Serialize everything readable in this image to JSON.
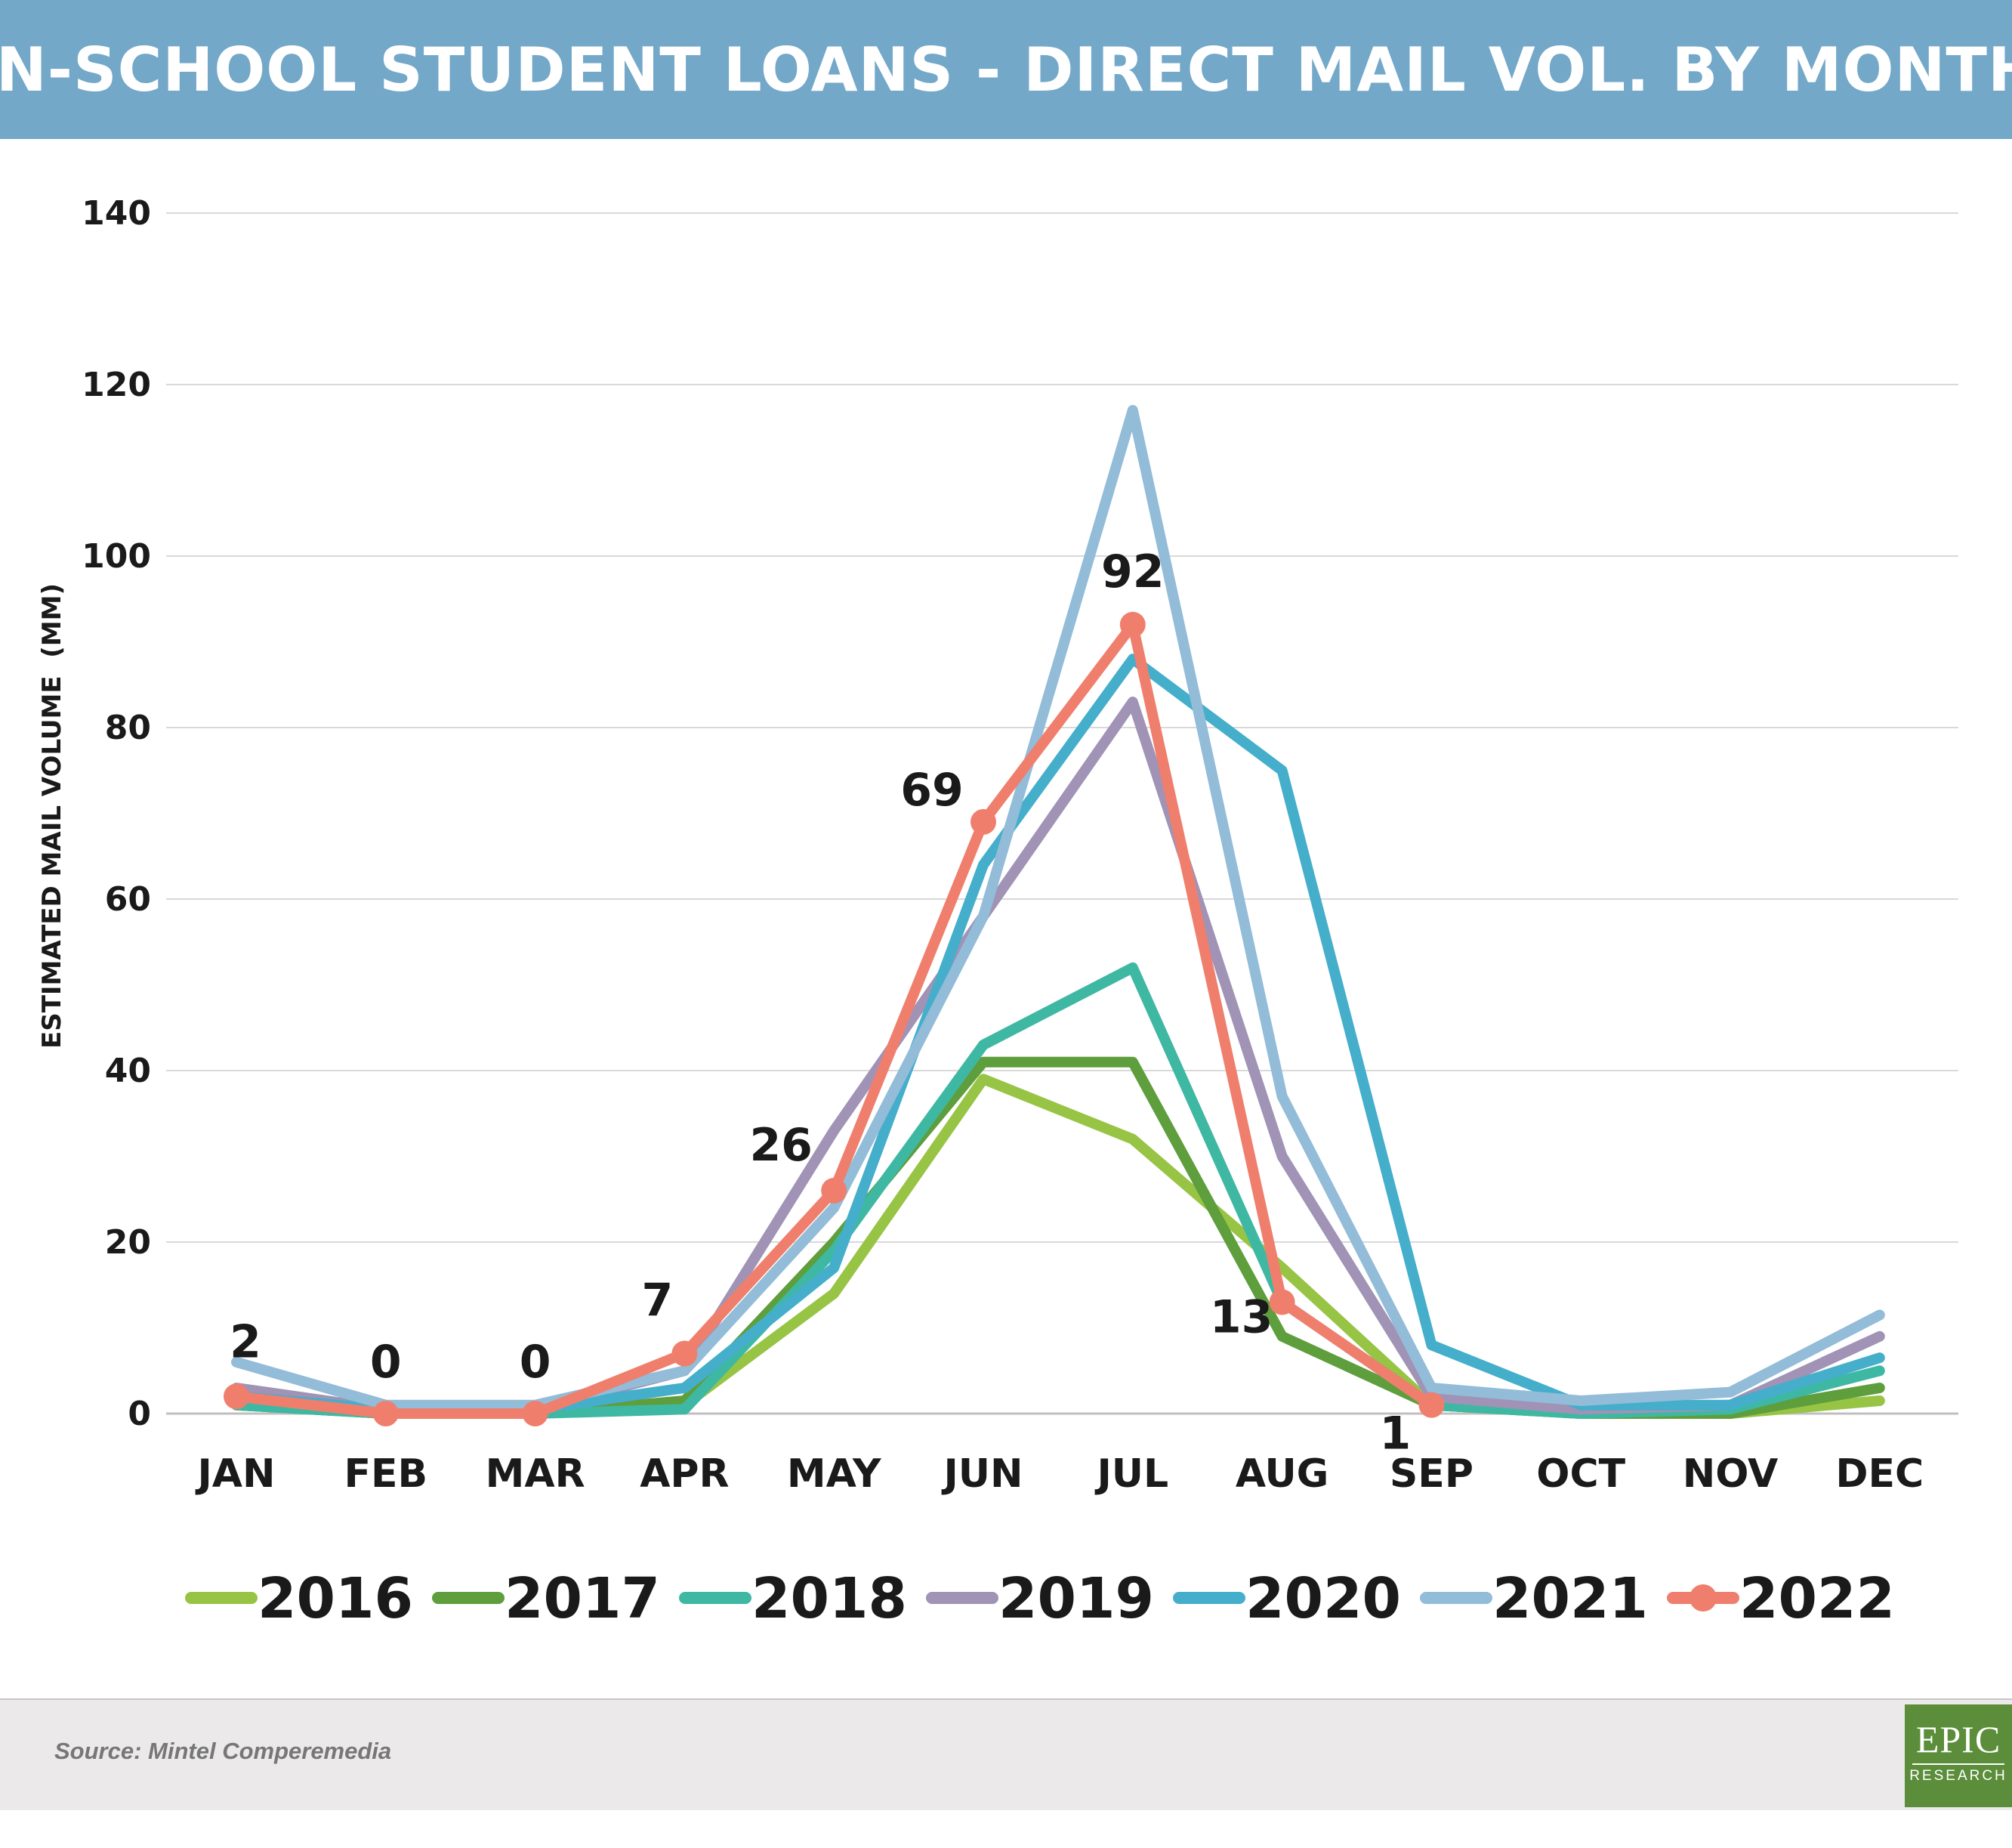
{
  "title": "IN-SCHOOL STUDENT LOANS - DIRECT MAIL VOL. BY MONTH",
  "source": "Source: Mintel Comperemedia",
  "logo": {
    "main": "EPIC",
    "sub": "RESEARCH"
  },
  "colors": {
    "banner": "#73a8c9",
    "grid": "#d9d9d9",
    "text": "#1a1a1a",
    "footer": "#ebe9ea",
    "logo": "#5b8d3a"
  },
  "chart_data": {
    "type": "line",
    "title": "",
    "xlabel": "",
    "ylabel": "ESTIMATED MAIL VOLUME  (MM)",
    "ylim": [
      0,
      140
    ],
    "yticks": [
      0,
      20,
      40,
      60,
      80,
      100,
      120,
      140
    ],
    "grid": true,
    "legend": "bottom",
    "categories": [
      "JAN",
      "FEB",
      "MAR",
      "APR",
      "MAY",
      "JUN",
      "JUL",
      "AUG",
      "SEP",
      "OCT",
      "NOV",
      "DEC"
    ],
    "series": [
      {
        "name": "2016",
        "color": "#97c444",
        "marker": false,
        "values": [
          1,
          0,
          0,
          1,
          14,
          39,
          32,
          17,
          1,
          0,
          0,
          1.5
        ]
      },
      {
        "name": "2017",
        "color": "#5e9e3c",
        "marker": false,
        "values": [
          1,
          0,
          0,
          1.5,
          20,
          41,
          41,
          9,
          1,
          0,
          0,
          3
        ]
      },
      {
        "name": "2018",
        "color": "#3fb8a3",
        "marker": false,
        "values": [
          1,
          0,
          0,
          0.5,
          19,
          43,
          52,
          13,
          1,
          0,
          0.5,
          5
        ]
      },
      {
        "name": "2019",
        "color": "#a093b6",
        "marker": false,
        "values": [
          3,
          0.5,
          0.5,
          5,
          33,
          58,
          83,
          30,
          2,
          0.5,
          1,
          9
        ]
      },
      {
        "name": "2020",
        "color": "#45aecb",
        "marker": false,
        "values": [
          2,
          0.5,
          0.5,
          3,
          17,
          64,
          88,
          75,
          8,
          1,
          1,
          6.5
        ]
      },
      {
        "name": "2021",
        "color": "#92bcd8",
        "marker": false,
        "values": [
          6,
          1,
          1,
          5,
          24,
          58,
          117,
          37,
          3,
          1.5,
          2.5,
          11.5
        ]
      },
      {
        "name": "2022",
        "color": "#ef7f6c",
        "marker": true,
        "values": [
          2,
          0,
          0,
          7,
          26,
          69,
          92,
          13,
          1,
          null,
          null,
          null
        ]
      }
    ],
    "data_labels": [
      {
        "category": "JAN",
        "value": 2,
        "text": "2"
      },
      {
        "category": "FEB",
        "value": 0,
        "text": "0"
      },
      {
        "category": "MAR",
        "value": 0,
        "text": "0"
      },
      {
        "category": "APR",
        "value": 7,
        "text": "7"
      },
      {
        "category": "MAY",
        "value": 26,
        "text": "26"
      },
      {
        "category": "JUN",
        "value": 69,
        "text": "69"
      },
      {
        "category": "JUL",
        "value": 92,
        "text": "92"
      },
      {
        "category": "AUG",
        "value": 13,
        "text": "13"
      },
      {
        "category": "SEP",
        "value": 1,
        "text": "1"
      }
    ]
  }
}
